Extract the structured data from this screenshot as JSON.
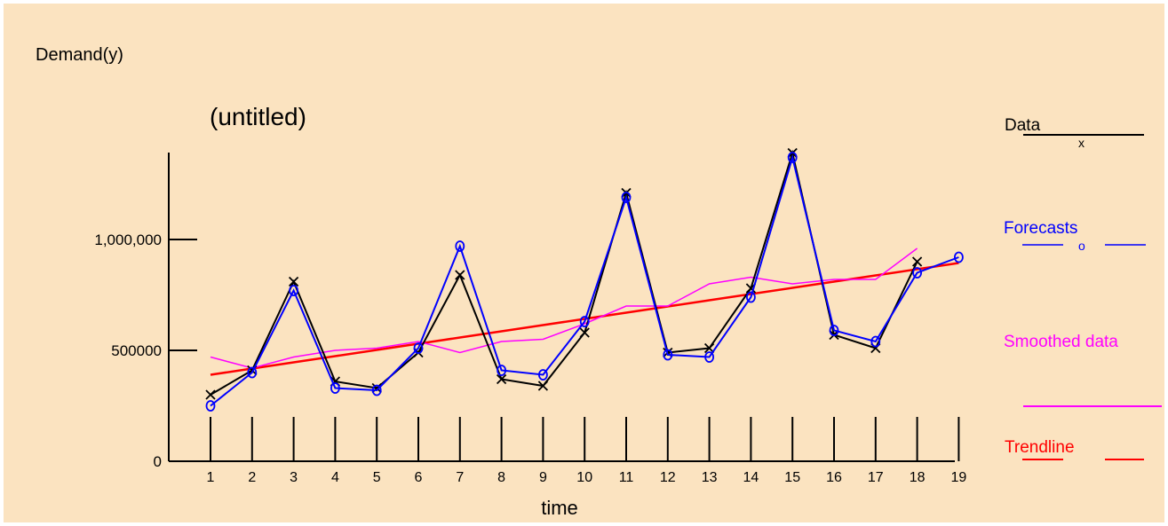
{
  "chart_data": {
    "type": "line",
    "title": "(untitled)",
    "xlabel": "time",
    "ylabel": "Demand(y)",
    "x": [
      1,
      2,
      3,
      4,
      5,
      6,
      7,
      8,
      9,
      10,
      11,
      12,
      13,
      14,
      15,
      16,
      17,
      18,
      19
    ],
    "x_tick_labels": [
      "1",
      "2",
      "3",
      "4",
      "5",
      "6",
      "7",
      "8",
      "9",
      "10",
      "11",
      "12",
      "13",
      "14",
      "15",
      "16",
      "17",
      "18",
      "19"
    ],
    "y_tick_labels": [
      "0",
      "500000",
      "1,000,000"
    ],
    "y_tick_values": [
      0,
      500000,
      1000000
    ],
    "ylim": [
      0,
      1400000
    ],
    "xlim": [
      0,
      19.5
    ],
    "grid": false,
    "legend_position": "right",
    "series": [
      {
        "name": "Data",
        "color": "#000000",
        "marker": "x",
        "values": [
          300000,
          410000,
          810000,
          360000,
          330000,
          490000,
          840000,
          370000,
          340000,
          580000,
          1210000,
          490000,
          510000,
          780000,
          1390000,
          570000,
          510000,
          900000,
          null
        ]
      },
      {
        "name": "Forecasts",
        "color": "#0000ff",
        "marker": "o",
        "values": [
          250000,
          400000,
          770000,
          330000,
          320000,
          510000,
          970000,
          410000,
          390000,
          630000,
          1190000,
          480000,
          470000,
          740000,
          1370000,
          590000,
          540000,
          850000,
          920000
        ]
      },
      {
        "name": "Smoothed data",
        "color": "#ff00ff",
        "marker": "none",
        "values": [
          470000,
          420000,
          470000,
          500000,
          510000,
          540000,
          490000,
          540000,
          550000,
          620000,
          700000,
          700000,
          800000,
          830000,
          800000,
          820000,
          820000,
          960000,
          null
        ]
      },
      {
        "name": "Trendline",
        "color": "#ff0000",
        "marker": "none",
        "values": [
          390000,
          418000,
          446000,
          474000,
          502000,
          530000,
          558000,
          586000,
          614000,
          642000,
          670000,
          698000,
          726000,
          754000,
          782000,
          810000,
          838000,
          866000,
          894000
        ]
      }
    ]
  },
  "legend": {
    "data_label": "Data",
    "forecasts_label": "Forecasts",
    "smoothed_label": "Smoothed data",
    "trendline_label": "Trendline",
    "data_marker": "x",
    "forecasts_marker": "o"
  }
}
